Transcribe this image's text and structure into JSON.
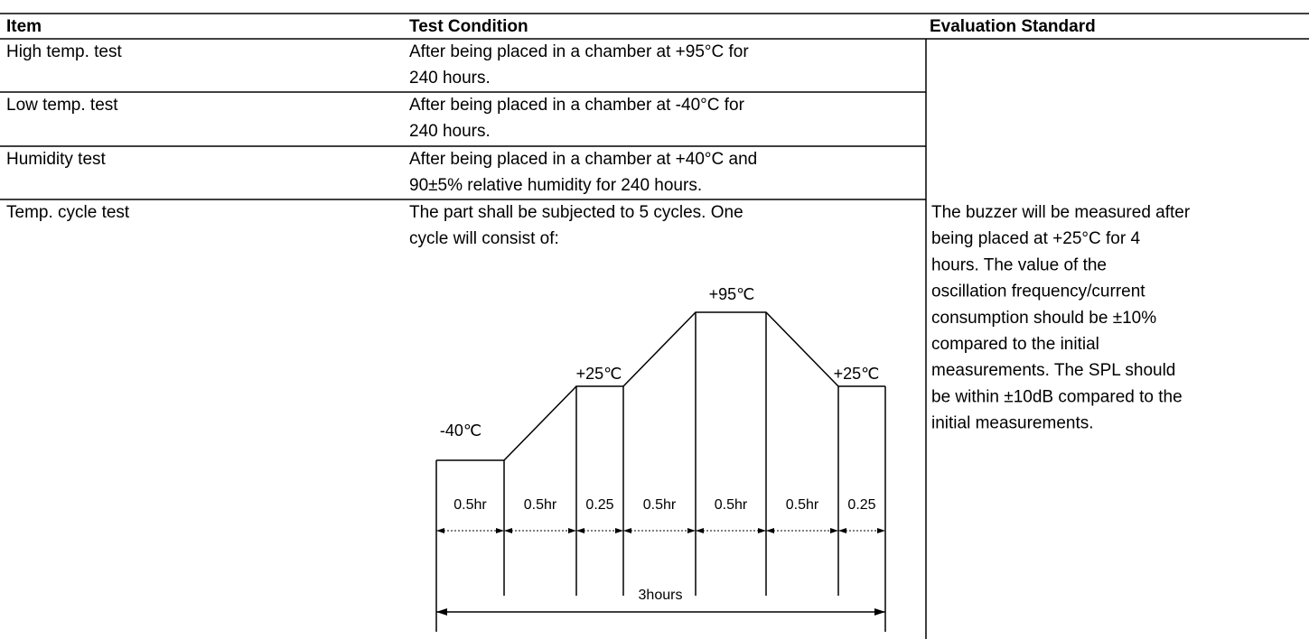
{
  "table": {
    "headers": [
      "Item",
      "Test Condition",
      "Evaluation Standard"
    ],
    "rows": [
      {
        "item": "High temp. test",
        "condition": [
          "After being placed in a chamber at +95°C for",
          "240 hours."
        ]
      },
      {
        "item": "Low temp. test",
        "condition": [
          "After being placed in a chamber at -40°C for",
          "240 hours."
        ]
      },
      {
        "item": "Humidity test",
        "condition": [
          "After being placed in a chamber at +40°C and",
          "90±5% relative humidity for 240 hours."
        ]
      },
      {
        "item": "Temp. cycle test",
        "condition": [
          "The part shall be subjected to 5 cycles.  One",
          "cycle will consist of:"
        ]
      }
    ],
    "evaluation": [
      "The buzzer will be measured after",
      "being placed at +25°C for 4",
      "hours.  The value of the",
      "oscillation frequency/current",
      "consumption should be ±10%",
      "compared to the initial",
      "measurements.  The SPL should",
      "be within ±10dB compared to the",
      "initial measurements."
    ]
  },
  "diagram": {
    "temperatures": [
      "-40℃",
      "+25℃",
      "+95℃",
      "+25℃"
    ],
    "segments": [
      "0.5hr",
      "0.5hr",
      "0.25",
      "0.5hr",
      "0.5hr",
      "0.5hr",
      "0.25"
    ],
    "total": "3hours"
  }
}
